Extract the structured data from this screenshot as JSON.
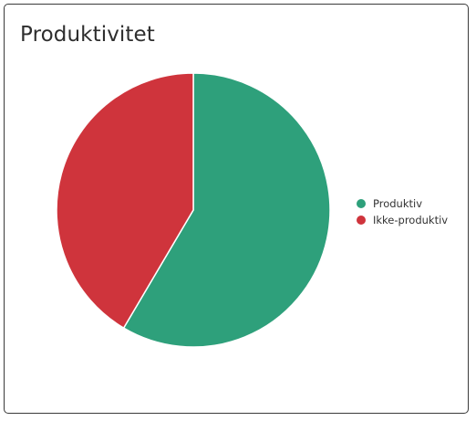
{
  "title": "Produktivitet",
  "colors": {
    "produktiv": "#2ea07b",
    "ikke_produktiv": "#cf343c"
  },
  "chart_data": {
    "type": "pie",
    "title": "Produktivitet",
    "slices": [
      {
        "label": "Produktiv",
        "value": 58.5,
        "color": "#2ea07b"
      },
      {
        "label": "Ikke-produktiv",
        "value": 41.5,
        "color": "#cf343c"
      }
    ],
    "start_angle_deg": 0,
    "direction": "clockwise",
    "legend_position": "right"
  }
}
